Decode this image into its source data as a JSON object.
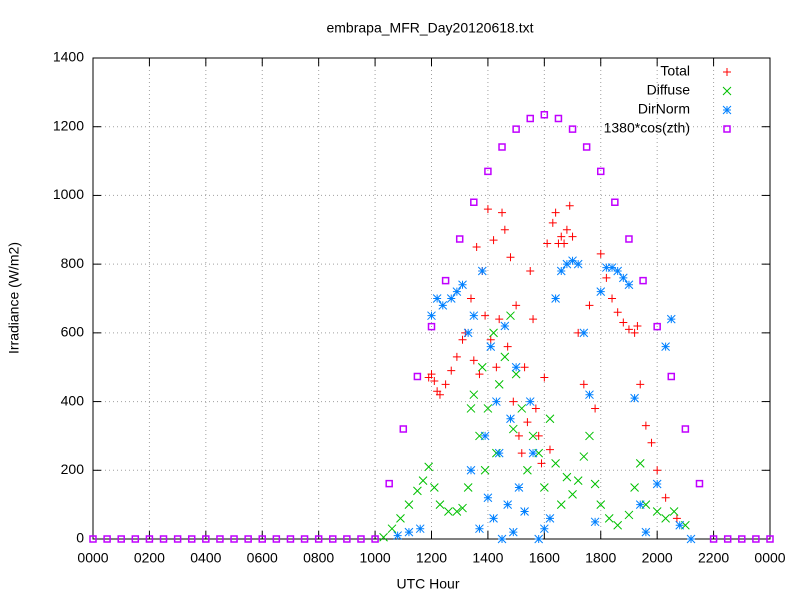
{
  "chart_data": {
    "type": "scatter",
    "title": "embrapa_MFR_Day20120618.txt",
    "x_label": "UTC Hour",
    "y_label": "Irradiance (W/m2)",
    "xlim": [
      0,
      24
    ],
    "ylim": [
      0,
      1400
    ],
    "xticks": [
      {
        "value": 0,
        "label": "0000"
      },
      {
        "value": 2,
        "label": "0200"
      },
      {
        "value": 4,
        "label": "0400"
      },
      {
        "value": 6,
        "label": "0600"
      },
      {
        "value": 8,
        "label": "0800"
      },
      {
        "value": 10,
        "label": "1000"
      },
      {
        "value": 12,
        "label": "1200"
      },
      {
        "value": 14,
        "label": "1400"
      },
      {
        "value": 16,
        "label": "1600"
      },
      {
        "value": 18,
        "label": "1800"
      },
      {
        "value": 20,
        "label": "2000"
      },
      {
        "value": 22,
        "label": "2200"
      },
      {
        "value": 24,
        "label": "0000"
      }
    ],
    "yticks": [
      0,
      200,
      400,
      600,
      800,
      1000,
      1200,
      1400
    ],
    "grid": true,
    "legend": "top-right",
    "series": [
      {
        "name": "Total",
        "color": "#ff0000",
        "marker": "plus",
        "x": [
          11.9,
          12.0,
          12.1,
          12.2,
          12.3,
          12.5,
          12.7,
          12.9,
          13.1,
          13.2,
          13.4,
          13.5,
          13.6,
          13.7,
          13.8,
          13.9,
          14.0,
          14.1,
          14.2,
          14.3,
          14.4,
          14.5,
          14.6,
          14.7,
          14.8,
          14.9,
          15.0,
          15.1,
          15.2,
          15.3,
          15.4,
          15.5,
          15.6,
          15.7,
          15.8,
          15.9,
          16.0,
          16.1,
          16.2,
          16.3,
          16.4,
          16.5,
          16.6,
          16.7,
          16.8,
          16.9,
          17.0,
          17.2,
          17.4,
          17.6,
          17.8,
          18.0,
          18.2,
          18.4,
          18.6,
          18.8,
          19.0,
          19.2,
          19.3,
          19.4,
          19.6,
          19.8,
          20.0,
          20.3,
          20.7
        ],
        "values": [
          470,
          480,
          460,
          430,
          420,
          450,
          490,
          530,
          580,
          600,
          700,
          520,
          850,
          480,
          780,
          650,
          960,
          580,
          870,
          500,
          640,
          950,
          900,
          560,
          820,
          400,
          680,
          300,
          250,
          500,
          340,
          780,
          640,
          380,
          300,
          220,
          470,
          860,
          260,
          920,
          950,
          860,
          880,
          860,
          900,
          970,
          880,
          600,
          450,
          680,
          380,
          830,
          760,
          700,
          660,
          630,
          610,
          600,
          620,
          450,
          330,
          280,
          200,
          120,
          60
        ]
      },
      {
        "name": "Diffuse",
        "color": "#00c000",
        "marker": "cross",
        "x": [
          10.3,
          10.6,
          10.9,
          11.2,
          11.5,
          11.7,
          11.9,
          12.1,
          12.3,
          12.6,
          12.9,
          13.1,
          13.3,
          13.4,
          13.5,
          13.7,
          13.8,
          13.9,
          14.0,
          14.2,
          14.3,
          14.4,
          14.6,
          14.8,
          14.9,
          15.0,
          15.2,
          15.4,
          15.6,
          15.8,
          16.0,
          16.2,
          16.4,
          16.6,
          16.8,
          17.0,
          17.2,
          17.4,
          17.6,
          17.8,
          18.0,
          18.3,
          18.6,
          19.0,
          19.2,
          19.4,
          19.6,
          20.0,
          20.3,
          20.6,
          21.0
        ],
        "values": [
          5,
          30,
          60,
          100,
          140,
          170,
          210,
          150,
          100,
          80,
          80,
          90,
          150,
          380,
          420,
          300,
          500,
          200,
          380,
          600,
          250,
          450,
          530,
          650,
          320,
          480,
          380,
          200,
          300,
          250,
          150,
          350,
          220,
          100,
          180,
          130,
          170,
          240,
          300,
          160,
          100,
          60,
          40,
          70,
          150,
          220,
          100,
          80,
          60,
          80,
          40
        ]
      },
      {
        "name": "DirNorm",
        "color": "#0080ff",
        "marker": "star",
        "x": [
          10.8,
          11.2,
          11.6,
          12.0,
          12.2,
          12.4,
          12.7,
          12.9,
          13.1,
          13.3,
          13.4,
          13.5,
          13.7,
          13.8,
          13.9,
          14.0,
          14.1,
          14.2,
          14.3,
          14.4,
          14.5,
          14.6,
          14.7,
          14.8,
          14.9,
          15.0,
          15.1,
          15.3,
          15.5,
          15.6,
          15.8,
          16.0,
          16.2,
          16.4,
          16.6,
          16.8,
          17.0,
          17.2,
          17.4,
          17.6,
          17.8,
          18.0,
          18.2,
          18.4,
          18.6,
          18.8,
          19.0,
          19.2,
          19.4,
          19.6,
          20.0,
          20.3,
          20.5,
          20.8,
          21.2
        ],
        "values": [
          10,
          20,
          30,
          650,
          700,
          680,
          700,
          720,
          740,
          600,
          200,
          650,
          30,
          780,
          300,
          120,
          560,
          60,
          400,
          250,
          0,
          620,
          100,
          350,
          20,
          500,
          150,
          80,
          400,
          250,
          0,
          30,
          60,
          700,
          780,
          800,
          810,
          800,
          600,
          420,
          50,
          720,
          790,
          790,
          780,
          760,
          740,
          410,
          100,
          20,
          160,
          560,
          640,
          40,
          0
        ]
      },
      {
        "name": "1380*cos(zth)",
        "color": "#c000ff",
        "marker": "square",
        "x": [
          0,
          0.5,
          1,
          1.5,
          2,
          2.5,
          3,
          3.5,
          4,
          4.5,
          5,
          5.5,
          6,
          6.5,
          7,
          7.5,
          8,
          8.5,
          9,
          9.5,
          10,
          10.5,
          11,
          11.5,
          12,
          12.5,
          13,
          13.5,
          14,
          14.5,
          15,
          15.5,
          16,
          16.5,
          17,
          17.5,
          18,
          18.5,
          19,
          19.5,
          20,
          20.5,
          21,
          21.5,
          22,
          22.5,
          23,
          23.5,
          24
        ],
        "values": [
          0,
          0,
          0,
          0,
          0,
          0,
          0,
          0,
          0,
          0,
          0,
          0,
          0,
          0,
          0,
          0,
          0,
          0,
          0,
          0,
          0,
          161,
          320,
          473,
          618,
          752,
          873,
          980,
          1070,
          1141,
          1193,
          1224,
          1235,
          1224,
          1193,
          1141,
          1070,
          980,
          873,
          752,
          618,
          473,
          320,
          161,
          0,
          0,
          0,
          0,
          0
        ]
      }
    ]
  }
}
